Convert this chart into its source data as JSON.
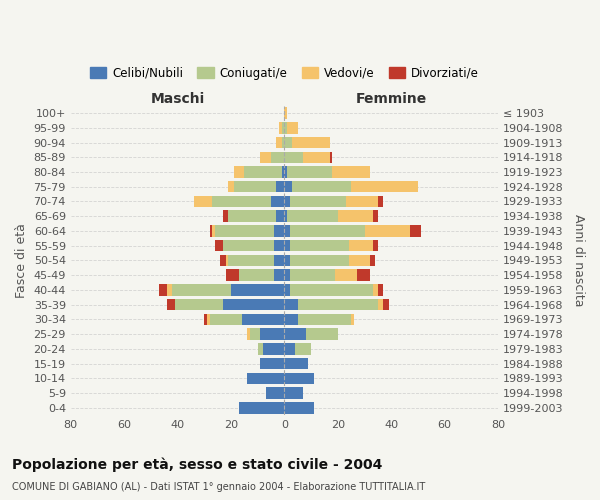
{
  "age_groups": [
    "0-4",
    "5-9",
    "10-14",
    "15-19",
    "20-24",
    "25-29",
    "30-34",
    "35-39",
    "40-44",
    "45-49",
    "50-54",
    "55-59",
    "60-64",
    "65-69",
    "70-74",
    "75-79",
    "80-84",
    "85-89",
    "90-94",
    "95-99",
    "100+"
  ],
  "birth_years": [
    "1999-2003",
    "1994-1998",
    "1989-1993",
    "1984-1988",
    "1979-1983",
    "1974-1978",
    "1969-1973",
    "1964-1968",
    "1959-1963",
    "1954-1958",
    "1949-1953",
    "1944-1948",
    "1939-1943",
    "1934-1938",
    "1929-1933",
    "1924-1928",
    "1919-1923",
    "1914-1918",
    "1909-1913",
    "1904-1908",
    "≤ 1903"
  ],
  "maschi": {
    "celibi": [
      17,
      7,
      14,
      9,
      8,
      9,
      16,
      23,
      20,
      4,
      4,
      4,
      4,
      3,
      5,
      3,
      1,
      0,
      0,
      0,
      0
    ],
    "coniugati": [
      0,
      0,
      0,
      0,
      2,
      4,
      12,
      18,
      22,
      13,
      17,
      19,
      22,
      18,
      22,
      16,
      14,
      5,
      1,
      1,
      0
    ],
    "vedovi": [
      0,
      0,
      0,
      0,
      0,
      1,
      1,
      0,
      2,
      0,
      1,
      0,
      1,
      0,
      7,
      2,
      4,
      4,
      2,
      1,
      0
    ],
    "divorziati": [
      0,
      0,
      0,
      0,
      0,
      0,
      1,
      3,
      3,
      5,
      2,
      3,
      1,
      2,
      0,
      0,
      0,
      0,
      0,
      0,
      0
    ]
  },
  "femmine": {
    "nubili": [
      11,
      7,
      11,
      9,
      4,
      8,
      5,
      5,
      2,
      2,
      2,
      2,
      2,
      1,
      2,
      3,
      1,
      0,
      0,
      0,
      0
    ],
    "coniugate": [
      0,
      0,
      0,
      0,
      6,
      12,
      20,
      30,
      31,
      17,
      22,
      22,
      28,
      19,
      21,
      22,
      17,
      7,
      3,
      1,
      0
    ],
    "vedove": [
      0,
      0,
      0,
      0,
      0,
      0,
      1,
      2,
      2,
      8,
      8,
      9,
      17,
      13,
      12,
      25,
      14,
      10,
      14,
      4,
      1
    ],
    "divorziate": [
      0,
      0,
      0,
      0,
      0,
      0,
      0,
      2,
      2,
      5,
      2,
      2,
      4,
      2,
      2,
      0,
      0,
      1,
      0,
      0,
      0
    ]
  },
  "colors": {
    "celibi": "#4a7ab5",
    "coniugati": "#b5c98e",
    "vedovi": "#f5c36b",
    "divorziati": "#c0392b"
  },
  "xlim": 80,
  "title": "Popolazione per età, sesso e stato civile - 2004",
  "subtitle": "COMUNE DI GABIANO (AL) - Dati ISTAT 1° gennaio 2004 - Elaborazione TUTTITALIA.IT",
  "ylabel_left": "Fasce di età",
  "ylabel_right": "Anni di nascita",
  "legend_labels": [
    "Celibi/Nubili",
    "Coniugati/e",
    "Vedovi/e",
    "Divorziati/e"
  ],
  "background_color": "#f5f5f0"
}
